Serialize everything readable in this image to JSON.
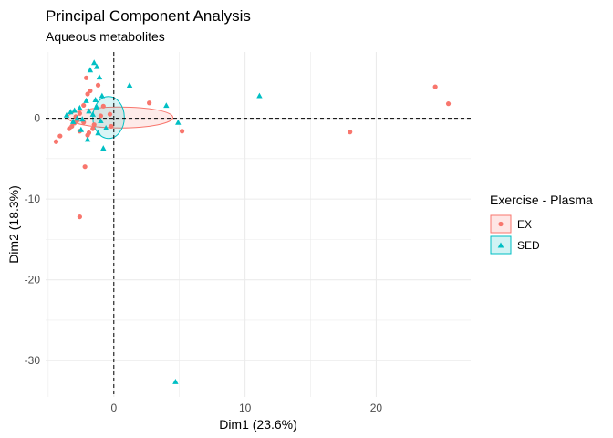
{
  "chart_data": {
    "type": "scatter",
    "title": "Principal Component Analysis",
    "subtitle": "Aqueous metabolites",
    "xlabel": "Dim1 (23.6%)",
    "ylabel": "Dim2 (18.3%)",
    "xlim": [
      -5.2,
      27.2
    ],
    "ylim": [
      -34.5,
      8.2
    ],
    "x_ticks": [
      0,
      10,
      20
    ],
    "y_ticks": [
      0,
      -10,
      -20,
      -30
    ],
    "grid": true,
    "reference_lines": {
      "x": 0,
      "y": 0,
      "style": "dashed"
    },
    "legend": {
      "title": "Exercise - Plasma",
      "position": "right"
    },
    "series": [
      {
        "name": "EX",
        "marker": "circle",
        "color": "#F8766D",
        "points": [
          [
            24.5,
            3.9
          ],
          [
            25.5,
            1.8
          ],
          [
            18.0,
            -1.7
          ],
          [
            5.2,
            -1.6
          ],
          [
            2.7,
            1.9
          ],
          [
            -0.3,
            0.5
          ],
          [
            -0.2,
            -1.0
          ],
          [
            -2.6,
            -12.2
          ],
          [
            -2.2,
            -6.0
          ],
          [
            -4.4,
            -2.9
          ],
          [
            -4.1,
            -2.2
          ],
          [
            -2.1,
            5.0
          ],
          [
            -1.2,
            4.1
          ],
          [
            -1.8,
            3.4
          ],
          [
            -2.0,
            3.0
          ],
          [
            -2.3,
            1.6
          ],
          [
            -2.6,
            0.6
          ],
          [
            -2.9,
            0.2
          ],
          [
            -3.0,
            -0.6
          ],
          [
            -3.4,
            -1.3
          ],
          [
            -2.6,
            -1.6
          ],
          [
            -2.0,
            -2.1
          ],
          [
            -1.5,
            -0.8
          ],
          [
            -1.0,
            0.3
          ],
          [
            -0.8,
            1.5
          ],
          [
            -1.6,
            -1.3
          ],
          [
            -3.2,
            -1.0
          ],
          [
            -2.3,
            -0.5
          ],
          [
            -1.9,
            -1.8
          ],
          [
            -2.8,
            -0.3
          ]
        ]
      },
      {
        "name": "SED",
        "marker": "triangle",
        "color": "#00BFC4",
        "points": [
          [
            11.1,
            2.8
          ],
          [
            4.7,
            -32.6
          ],
          [
            -1.5,
            6.9
          ],
          [
            -1.3,
            6.4
          ],
          [
            -1.8,
            6.0
          ],
          [
            -1.1,
            5.1
          ],
          [
            1.2,
            4.1
          ],
          [
            4.0,
            1.6
          ],
          [
            4.9,
            -0.5
          ],
          [
            -0.9,
            2.8
          ],
          [
            -1.4,
            2.3
          ],
          [
            -2.1,
            2.2
          ],
          [
            -2.6,
            1.3
          ],
          [
            -3.0,
            1.0
          ],
          [
            -3.3,
            0.8
          ],
          [
            -3.6,
            0.4
          ],
          [
            -2.4,
            -0.1
          ],
          [
            -1.6,
            0.5
          ],
          [
            -1.0,
            -0.3
          ],
          [
            -0.6,
            -1.2
          ],
          [
            -1.2,
            -1.8
          ],
          [
            -2.0,
            -2.6
          ],
          [
            -0.8,
            -3.7
          ],
          [
            -2.8,
            0.0
          ],
          [
            -3.1,
            -0.4
          ],
          [
            -1.9,
            0.9
          ],
          [
            -1.3,
            1.4
          ],
          [
            -2.5,
            -1.4
          ]
        ]
      }
    ],
    "ellipses": [
      {
        "series": "EX",
        "center": [
          0.5,
          0.1
        ],
        "rx": 4.0,
        "ry": 1.3
      },
      {
        "series": "SED",
        "center": [
          -0.4,
          0.1
        ],
        "rx": 1.2,
        "ry": 2.6
      }
    ]
  }
}
